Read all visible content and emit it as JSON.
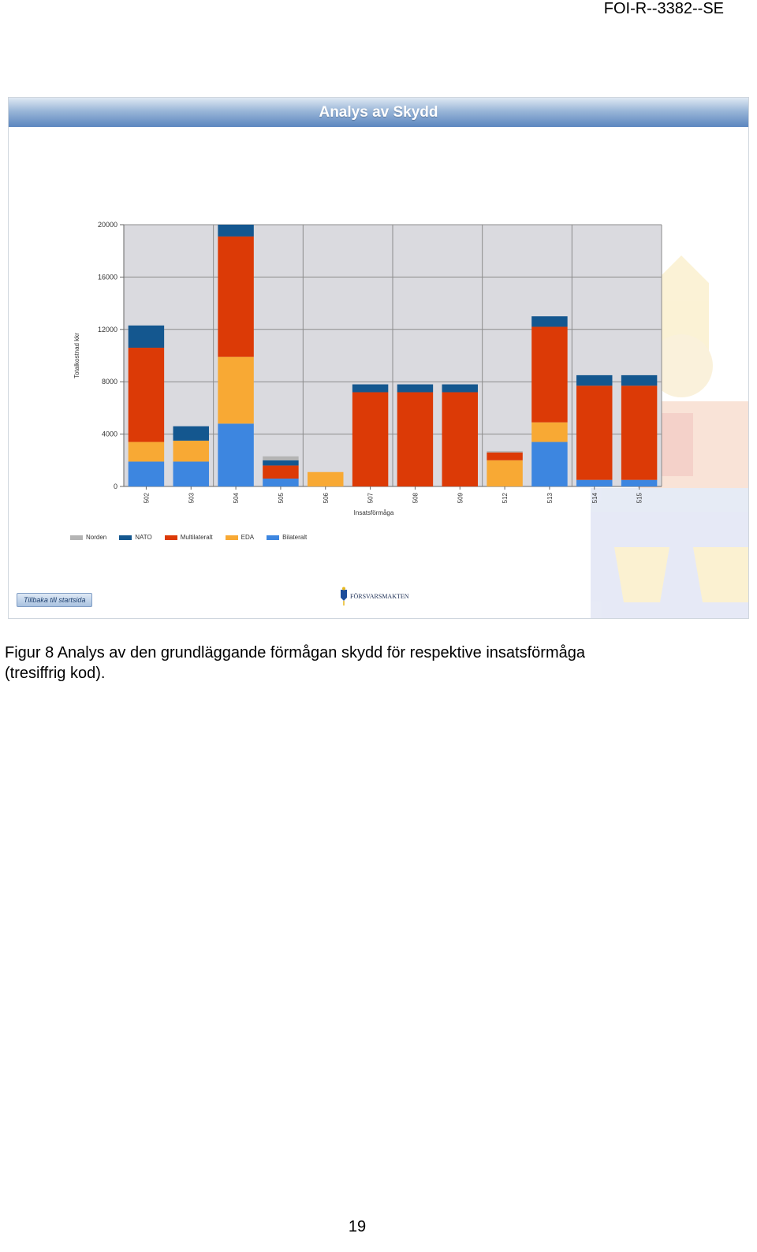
{
  "header": {
    "report_id": "FOI-R--3382--SE"
  },
  "figure": {
    "banner_title": "Analys av Skydd",
    "back_button_label": "Tillbaka till startsida",
    "logo_text": "FÖRSVARSMAKTEN"
  },
  "chart_data": {
    "type": "bar",
    "stacked": true,
    "title": "",
    "xlabel": "Insatsförmåga",
    "ylabel": "Totalkostnad kkr",
    "ylim": [
      0,
      20000
    ],
    "yticks": [
      0,
      4000,
      8000,
      12000,
      16000,
      20000
    ],
    "grid": true,
    "legend_position": "bottom-left",
    "categories": [
      "502",
      "503",
      "504",
      "505",
      "506",
      "507",
      "508",
      "509",
      "512",
      "513",
      "514",
      "515"
    ],
    "series": [
      {
        "name": "Bilateralt",
        "color": "#3d86e0",
        "values": [
          1900,
          1900,
          4800,
          600,
          0,
          0,
          0,
          0,
          0,
          3400,
          500,
          500
        ]
      },
      {
        "name": "EDA",
        "color": "#f8a934",
        "values": [
          1500,
          1600,
          5100,
          0,
          1100,
          0,
          0,
          0,
          2000,
          1500,
          0,
          0
        ]
      },
      {
        "name": "Multilateralt",
        "color": "#dc3a06",
        "values": [
          7200,
          0,
          9200,
          1000,
          0,
          7200,
          7200,
          7200,
          600,
          7300,
          7200,
          7200
        ]
      },
      {
        "name": "NATO",
        "color": "#14578f",
        "values": [
          1700,
          1100,
          900,
          400,
          0,
          600,
          600,
          600,
          0,
          800,
          800,
          800
        ]
      },
      {
        "name": "Norden",
        "color": "#b4b4b4",
        "values": [
          0,
          0,
          0,
          300,
          0,
          0,
          0,
          0,
          100,
          0,
          0,
          0
        ]
      }
    ],
    "legend_order": [
      "Norden",
      "NATO",
      "Multilateralt",
      "EDA",
      "Bilateralt"
    ]
  },
  "caption": {
    "line1": "Figur 8 Analys av den grundläggande förmågan skydd för respektive insatsförmåga",
    "line2": "(tresiffrig kod)."
  },
  "footer": {
    "page_number": "19"
  }
}
